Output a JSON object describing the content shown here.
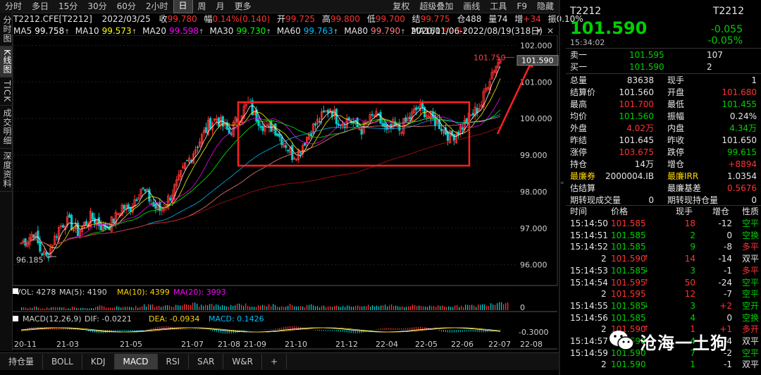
{
  "toolbar": {
    "periods": [
      "分时",
      "多日",
      "15分",
      "30分",
      "60分",
      "2小时",
      "日",
      "周",
      "月",
      "更多"
    ],
    "active_period": "日",
    "tools": [
      "复权",
      "超级叠加",
      "画线",
      "工具",
      "F9",
      "隐藏"
    ]
  },
  "left_tabs": [
    "分时图",
    "K线图",
    "TICK",
    "成交明细",
    "深度资料"
  ],
  "info": {
    "code": "T2212.CFE[T2212]",
    "date": "2022/03/25",
    "close_label": "收",
    "close": "99.780",
    "change_label": "幅",
    "change": "0.14%(0.140)",
    "open_label": "开",
    "open": "99.725",
    "high_label": "高",
    "high": "99.800",
    "low_label": "低",
    "low": "99.700",
    "settle_label": "结",
    "settle": "99.775",
    "oi_label": "仓",
    "oi": "488",
    "vol_label": "量",
    "vol": "74",
    "oichg_label": "增",
    "oichg": "+34",
    "amp_label": "振",
    "amp": "0.10%"
  },
  "ma": [
    {
      "label": "MA5",
      "value": "99.758",
      "color": "#ffffff"
    },
    {
      "label": "MA10",
      "value": "99.573",
      "color": "#ffff00"
    },
    {
      "label": "MA20",
      "value": "99.598",
      "color": "#ff00ff"
    },
    {
      "label": "MA30",
      "value": "99.730",
      "color": "#00ff00"
    },
    {
      "label": "MA60",
      "value": "99.763",
      "color": "#00bfff"
    },
    {
      "label": "MA80",
      "value": "99.790",
      "color": "#ff8080"
    },
    {
      "label": "MA160",
      "value": "99.8",
      "color": "#d01010"
    }
  ],
  "date_range": "2020/11/06-2022/08/19(318日)",
  "chart_data": {
    "type": "candlestick",
    "y_ticks": [
      "102.000",
      "101.000",
      "100.000",
      "99.000",
      "98.000",
      "97.000",
      "96.000"
    ],
    "ylim": [
      95.8,
      102.2
    ],
    "x_ticks": [
      "20-11",
      "21-03",
      "21-05",
      "21-07",
      "21-08",
      "21-09",
      "21-10",
      "21-12",
      "22-04",
      "22-05",
      "22-06",
      "22-07",
      "22-08"
    ],
    "low_marker": "96.185",
    "high_marker": "101.750",
    "current_price": "101.590",
    "path": [
      96.6,
      96.7,
      96.9,
      96.4,
      96.2,
      96.6,
      97.0,
      97.2,
      97.1,
      96.9,
      97.1,
      97.3,
      97.2,
      97.0,
      97.1,
      97.3,
      97.6,
      97.5,
      97.8,
      98.1,
      97.9,
      97.6,
      97.5,
      97.7,
      98.0,
      98.3,
      98.7,
      99.0,
      99.3,
      99.6,
      99.9,
      100.0,
      99.8,
      99.6,
      99.9,
      100.2,
      100.4,
      100.1,
      99.9,
      99.7,
      99.8,
      99.5,
      99.3,
      99.0,
      99.1,
      99.4,
      99.7,
      99.9,
      100.1,
      100.3,
      100.0,
      99.9,
      100.0,
      99.8,
      99.7,
      99.9,
      100.1,
      99.9,
      99.6,
      99.8,
      99.7,
      99.9,
      100.1,
      100.3,
      100.2,
      100.0,
      99.9,
      99.7,
      99.5,
      99.6,
      99.8,
      100.0,
      100.2,
      100.4,
      101.0,
      101.4,
      101.6
    ]
  },
  "vol_panel": {
    "title": "VOL: 4278",
    "ma5": "MA(5): 4190",
    "ma10": "MA(10): 4399",
    "ma20": "MA(20): 3993",
    "tick": "0",
    "bars": [
      0.3,
      0.25,
      0.35,
      0.2,
      0.3,
      0.4,
      0.3,
      0.25,
      0.35,
      0.3,
      0.25,
      0.3,
      0.45,
      0.35,
      0.3,
      0.4,
      0.5,
      0.35,
      0.4,
      0.55,
      0.6,
      0.5,
      0.45,
      0.5,
      0.55,
      0.65,
      0.6,
      0.7,
      0.55,
      0.6,
      0.65,
      0.5,
      0.55,
      0.6,
      0.7,
      0.65,
      0.5,
      0.45,
      0.55,
      0.6,
      0.5,
      0.55,
      0.6,
      0.5,
      0.45,
      0.55,
      0.5,
      0.45,
      0.5,
      0.55,
      0.5,
      0.45,
      0.5,
      0.55,
      0.5,
      0.45,
      0.5,
      0.55,
      0.6,
      0.5,
      0.45,
      0.5,
      0.55,
      0.5,
      0.45,
      0.5,
      0.55,
      0.5,
      0.45,
      0.5,
      0.55,
      0.5,
      0.6,
      0.7,
      0.8,
      0.95,
      1.0
    ]
  },
  "macd_panel": {
    "title": "MACD(12,26,9)",
    "dif": "DIF: -0.0221",
    "dea": "DEA: -0.0934",
    "macd": "MACD: 0.1426",
    "tick": "-0.3000"
  },
  "bottom_tabs": [
    "持仓量",
    "BOLL",
    "KDJ",
    "MACD",
    "RSI",
    "SAR",
    "W&R"
  ],
  "active_bottom_tab": "MACD",
  "quote": {
    "code_left": "T2212",
    "code_right": "T2212",
    "price": "101.590",
    "change": "-0.055",
    "change_pct": "-0.05%",
    "time": "15:34:02",
    "ask_label": "卖一",
    "ask_price": "101.595",
    "ask_vol": "107",
    "bid_label": "买一",
    "bid_price": "101.590",
    "bid_vol": "2",
    "stats": [
      [
        "总量",
        "83638",
        "white",
        "现手",
        "1",
        "white"
      ],
      [
        "结算价",
        "101.560",
        "white",
        "开盘",
        "101.680",
        "red"
      ],
      [
        "最高",
        "101.700",
        "red",
        "最低",
        "101.455",
        "green"
      ],
      [
        "均价",
        "101.560",
        "green",
        "振幅",
        "0.24%",
        "white"
      ],
      [
        "外盘",
        "4.02万",
        "red",
        "内盘",
        "4.34万",
        "green"
      ],
      [
        "昨结",
        "101.645",
        "white",
        "昨收",
        "101.650",
        "white"
      ],
      [
        "涨停",
        "103.675",
        "red",
        "跌停",
        "99.615",
        "green"
      ],
      [
        "持仓",
        "14万",
        "white",
        "增仓",
        "+8894",
        "red"
      ],
      [
        "最廉券",
        "2000004.IB",
        "white",
        "最廉IRR",
        "1.0354",
        "white"
      ],
      [
        "估结算",
        "",
        "white",
        "最廉基差",
        "0.5676",
        "red"
      ],
      [
        "期转现成交量",
        "0",
        "white",
        "期转现持仓量",
        "0",
        "white"
      ]
    ]
  },
  "ticks_header": [
    "时间",
    "价格",
    "现手",
    "增仓",
    "性质"
  ],
  "ticks": [
    [
      "15:14:50",
      "101.585",
      "",
      "18",
      "-12",
      "空平",
      "red",
      "green"
    ],
    [
      "15:14:51",
      "101.585",
      "",
      "2",
      "0",
      "空换",
      "green",
      "green"
    ],
    [
      "15:14:52",
      "101.585",
      "",
      "9",
      "-8",
      "多平",
      "green",
      "red"
    ],
    [
      "2",
      "101.590",
      "↑",
      "14",
      "-14",
      "双平",
      "red",
      "white"
    ],
    [
      "15:14:53",
      "101.585",
      "↓",
      "3",
      "-1",
      "多平",
      "green",
      "red"
    ],
    [
      "15:14:54",
      "101.595",
      "↑",
      "50",
      "-24",
      "空平",
      "red",
      "green"
    ],
    [
      "2",
      "101.595",
      "",
      "12",
      "-7",
      "空平",
      "red",
      "green"
    ],
    [
      "15:14:55",
      "101.585",
      "↓",
      "3",
      "+2",
      "空开",
      "green",
      "green"
    ],
    [
      "15:14:56",
      "101.585",
      "",
      "4",
      "0",
      "空换",
      "green",
      "green"
    ],
    [
      "2",
      "101.590",
      "↑",
      "1",
      "+1",
      "多开",
      "red",
      "red"
    ],
    [
      "15:14:57",
      "101.590",
      "",
      "4",
      "-4",
      "双平",
      "green",
      "white"
    ],
    [
      "15:14:59",
      "101.590",
      "",
      "7",
      "-2",
      "空平",
      "green",
      "green"
    ],
    [
      "2",
      "101.590",
      "",
      "1",
      "-1",
      "双平",
      "green",
      "white"
    ]
  ],
  "watermark": "沧海一土狗"
}
